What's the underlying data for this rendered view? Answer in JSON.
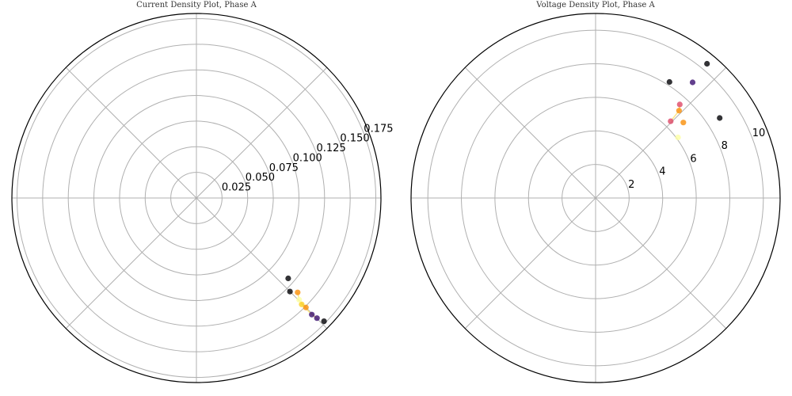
{
  "chart_data": [
    {
      "type": "scatter",
      "projection": "polar",
      "title": "Current Density Plot, Phase A",
      "rlim": [
        0,
        0.18
      ],
      "r_ticks": [
        0.025,
        0.05,
        0.075,
        0.1,
        0.125,
        0.15,
        0.175
      ],
      "r_tick_labels": [
        "0.025",
        "0.050",
        "0.075",
        "0.100",
        "0.125",
        "0.150",
        "0.175"
      ],
      "r_label_angle_deg": 22.5,
      "theta_grid_deg": [
        0,
        45,
        90,
        135,
        180,
        225,
        270,
        315
      ],
      "theta_tick_labels_shown": false,
      "grid": true,
      "colormap": "inferno",
      "colors_used": [
        "#000004",
        "#3b0f70",
        "#8c2981",
        "#de4968",
        "#f98e09",
        "#fcffa4"
      ],
      "points": [
        {
          "theta_deg": -44.0,
          "r": 0.173,
          "color": "#000004"
        },
        {
          "theta_deg": -44.9,
          "r": 0.166,
          "color": "#3b0f70"
        },
        {
          "theta_deg": -45.3,
          "r": 0.16,
          "color": "#3b0f70"
        },
        {
          "theta_deg": -45.0,
          "r": 0.151,
          "color": "#f98e09"
        },
        {
          "theta_deg": -45.3,
          "r": 0.146,
          "color": "#fcd225"
        },
        {
          "theta_deg": -44.7,
          "r": 0.141,
          "color": "#fcffa4"
        },
        {
          "theta_deg": -43.0,
          "r": 0.135,
          "color": "#f98e09"
        },
        {
          "theta_deg": -45.0,
          "r": 0.129,
          "color": "#000004"
        },
        {
          "theta_deg": -41.2,
          "r": 0.119,
          "color": "#000004"
        }
      ],
      "trace": [
        {
          "theta_deg": -44.9,
          "r": 0.166
        },
        {
          "theta_deg": -45.3,
          "r": 0.16
        },
        {
          "theta_deg": -45.3,
          "r": 0.146
        },
        {
          "theta_deg": -44.7,
          "r": 0.141
        },
        {
          "theta_deg": -43.0,
          "r": 0.135
        }
      ],
      "trace_color": "#fde68a"
    },
    {
      "type": "scatter",
      "projection": "polar",
      "title": "Voltage Density Plot, Phase A",
      "rlim": [
        0,
        11
      ],
      "r_ticks": [
        2,
        4,
        6,
        8,
        10
      ],
      "r_tick_labels": [
        "2",
        "4",
        "6",
        "8",
        "10"
      ],
      "r_label_angle_deg": 22.5,
      "theta_grid_deg": [
        0,
        45,
        90,
        135,
        180,
        225,
        270,
        315
      ],
      "theta_tick_labels_shown": false,
      "grid": true,
      "colormap": "inferno",
      "colors_used": [
        "#000004",
        "#3b0f70",
        "#de4968",
        "#f98e09",
        "#fcffa4"
      ],
      "points": [
        {
          "theta_deg": 50.3,
          "r": 10.4,
          "color": "#000004"
        },
        {
          "theta_deg": 50.0,
          "r": 9.0,
          "color": "#3b0f70"
        },
        {
          "theta_deg": 57.5,
          "r": 8.2,
          "color": "#000004"
        },
        {
          "theta_deg": 48.0,
          "r": 7.5,
          "color": "#de4968"
        },
        {
          "theta_deg": 46.3,
          "r": 7.2,
          "color": "#f98e09"
        },
        {
          "theta_deg": 32.8,
          "r": 8.8,
          "color": "#000004"
        },
        {
          "theta_deg": 40.7,
          "r": 6.9,
          "color": "#f98e09"
        },
        {
          "theta_deg": 45.6,
          "r": 6.4,
          "color": "#de4968"
        },
        {
          "theta_deg": 36.3,
          "r": 6.1,
          "color": "#fcffa4"
        }
      ],
      "trace": [
        {
          "theta_deg": 45.6,
          "r": 6.4
        },
        {
          "theta_deg": 46.3,
          "r": 7.2
        },
        {
          "theta_deg": 48.0,
          "r": 7.5
        }
      ],
      "trace_color": "#fde68a"
    }
  ]
}
